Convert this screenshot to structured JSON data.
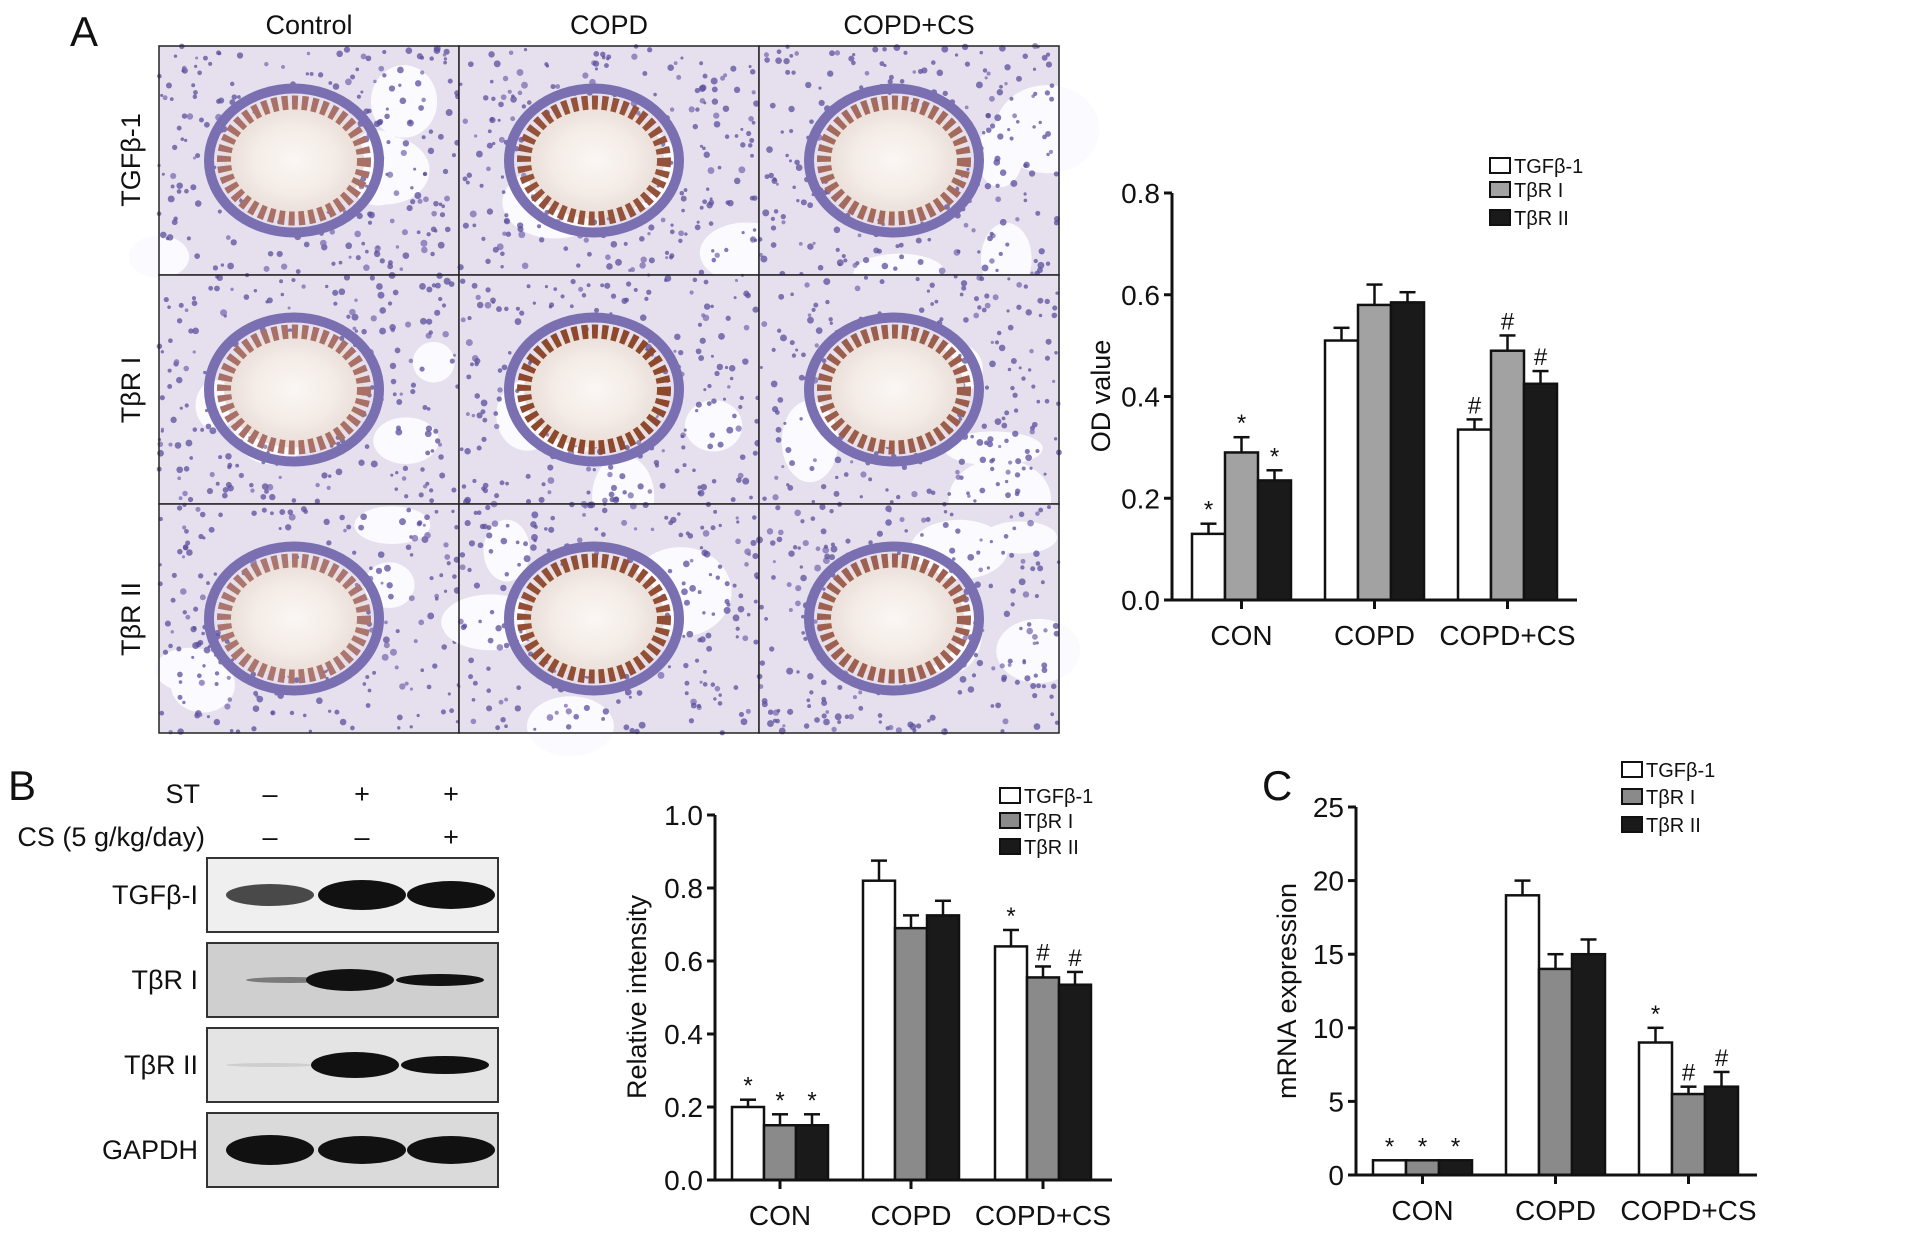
{
  "panel_letters": {
    "a": "A",
    "b": "B",
    "c": "C"
  },
  "micrographs": {
    "columns": [
      "Control",
      "COPD",
      "COPD+CS"
    ],
    "rows": [
      "TGFβ-1",
      "TβR I",
      "TβR II"
    ]
  },
  "western_blot": {
    "treatments": [
      {
        "label": "ST",
        "lanes": [
          "–",
          "+",
          "+"
        ]
      },
      {
        "label": "CS (5 g/kg/day)",
        "lanes": [
          "–",
          "–",
          "+"
        ]
      }
    ],
    "bands": [
      "TGFβ-I",
      "TβR I",
      "TβR II",
      "GAPDH"
    ]
  },
  "chart_data": [
    {
      "type": "bar",
      "panel": "A",
      "ylabel": "OD value",
      "xlabel": "",
      "ylim": [
        0,
        0.8
      ],
      "yticks": [
        "0.0",
        "0.2",
        "0.4",
        "0.6",
        "0.8"
      ],
      "categories": [
        "CON",
        "COPD",
        "COPD+CS"
      ],
      "legend_position": "top-right",
      "series": [
        {
          "name": "TGFβ-1",
          "color": "#ffffff",
          "values": [
            0.13,
            0.51,
            0.335
          ],
          "errors": [
            0.02,
            0.025,
            0.02
          ],
          "annotations": [
            "*",
            "",
            "#"
          ]
        },
        {
          "name": "TβR I",
          "color": "#a2a2a2",
          "values": [
            0.29,
            0.58,
            0.49
          ],
          "errors": [
            0.03,
            0.04,
            0.03
          ],
          "annotations": [
            "*",
            "",
            "#"
          ]
        },
        {
          "name": "TβR II",
          "color": "#1a1a1a",
          "values": [
            0.235,
            0.585,
            0.425
          ],
          "errors": [
            0.02,
            0.02,
            0.025
          ],
          "annotations": [
            "*",
            "",
            "#"
          ]
        }
      ]
    },
    {
      "type": "bar",
      "panel": "B",
      "ylabel": "Relative intensity",
      "xlabel": "",
      "ylim": [
        0,
        1.0
      ],
      "yticks": [
        "0.0",
        "0.2",
        "0.4",
        "0.6",
        "0.8",
        "1.0"
      ],
      "categories": [
        "CON",
        "COPD",
        "COPD+CS"
      ],
      "legend_position": "top-right",
      "series": [
        {
          "name": "TGFβ-1",
          "color": "#ffffff",
          "values": [
            0.2,
            0.82,
            0.64
          ],
          "errors": [
            0.02,
            0.055,
            0.045
          ],
          "annotations": [
            "*",
            "",
            "*"
          ]
        },
        {
          "name": "TβR I",
          "color": "#8a8a8a",
          "values": [
            0.15,
            0.69,
            0.555
          ],
          "errors": [
            0.03,
            0.035,
            0.03
          ],
          "annotations": [
            "*",
            "",
            "#"
          ]
        },
        {
          "name": "TβR II",
          "color": "#1a1a1a",
          "values": [
            0.15,
            0.725,
            0.535
          ],
          "errors": [
            0.03,
            0.04,
            0.035
          ],
          "annotations": [
            "*",
            "",
            "#"
          ]
        }
      ]
    },
    {
      "type": "bar",
      "panel": "C",
      "ylabel": "mRNA expression",
      "xlabel": "",
      "ylim": [
        0,
        25
      ],
      "yticks": [
        "0",
        "5",
        "10",
        "15",
        "20",
        "25"
      ],
      "categories": [
        "CON",
        "COPD",
        "COPD+CS"
      ],
      "legend_position": "top-right",
      "series": [
        {
          "name": "TGFβ-1",
          "color": "#ffffff",
          "values": [
            1,
            19,
            9
          ],
          "errors": [
            0,
            1,
            1
          ],
          "annotations": [
            "*",
            "",
            "*"
          ]
        },
        {
          "name": "TβR I",
          "color": "#8a8a8a",
          "values": [
            1,
            14,
            5.5
          ],
          "errors": [
            0,
            1,
            0.5
          ],
          "annotations": [
            "*",
            "",
            "#"
          ]
        },
        {
          "name": "TβR II",
          "color": "#1a1a1a",
          "values": [
            1,
            15,
            6
          ],
          "errors": [
            0,
            1,
            1
          ],
          "annotations": [
            "*",
            "",
            "#"
          ]
        }
      ]
    }
  ]
}
